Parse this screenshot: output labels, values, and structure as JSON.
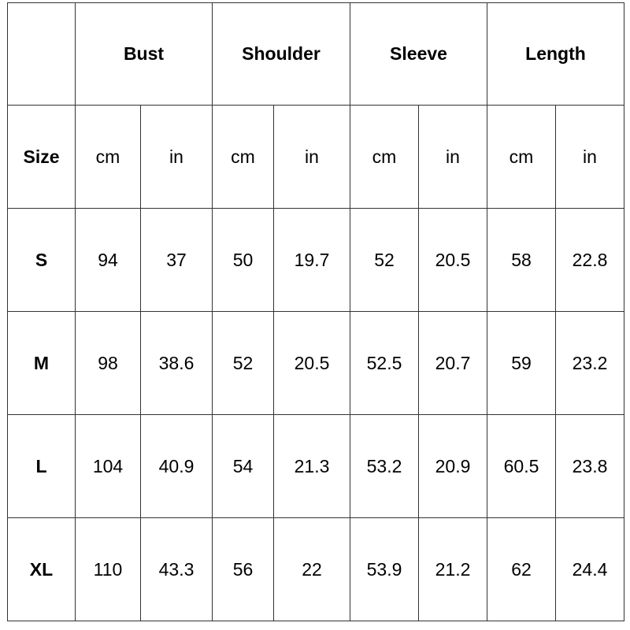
{
  "table": {
    "size_label": "Size",
    "groups": [
      "Bust",
      "Shoulder",
      "Sleeve",
      "Length"
    ],
    "units": [
      "cm",
      "in",
      "cm",
      "in",
      "cm",
      "in",
      "cm",
      "in"
    ],
    "rows": [
      {
        "size": "S",
        "values": [
          "94",
          "37",
          "50",
          "19.7",
          "52",
          "20.5",
          "58",
          "22.8"
        ]
      },
      {
        "size": "M",
        "values": [
          "98",
          "38.6",
          "52",
          "20.5",
          "52.5",
          "20.7",
          "59",
          "23.2"
        ]
      },
      {
        "size": "L",
        "values": [
          "104",
          "40.9",
          "54",
          "21.3",
          "53.2",
          "20.9",
          "60.5",
          "23.8"
        ]
      },
      {
        "size": "XL",
        "values": [
          "110",
          "43.3",
          "56",
          "22",
          "53.9",
          "21.2",
          "62",
          "24.4"
        ]
      }
    ]
  }
}
